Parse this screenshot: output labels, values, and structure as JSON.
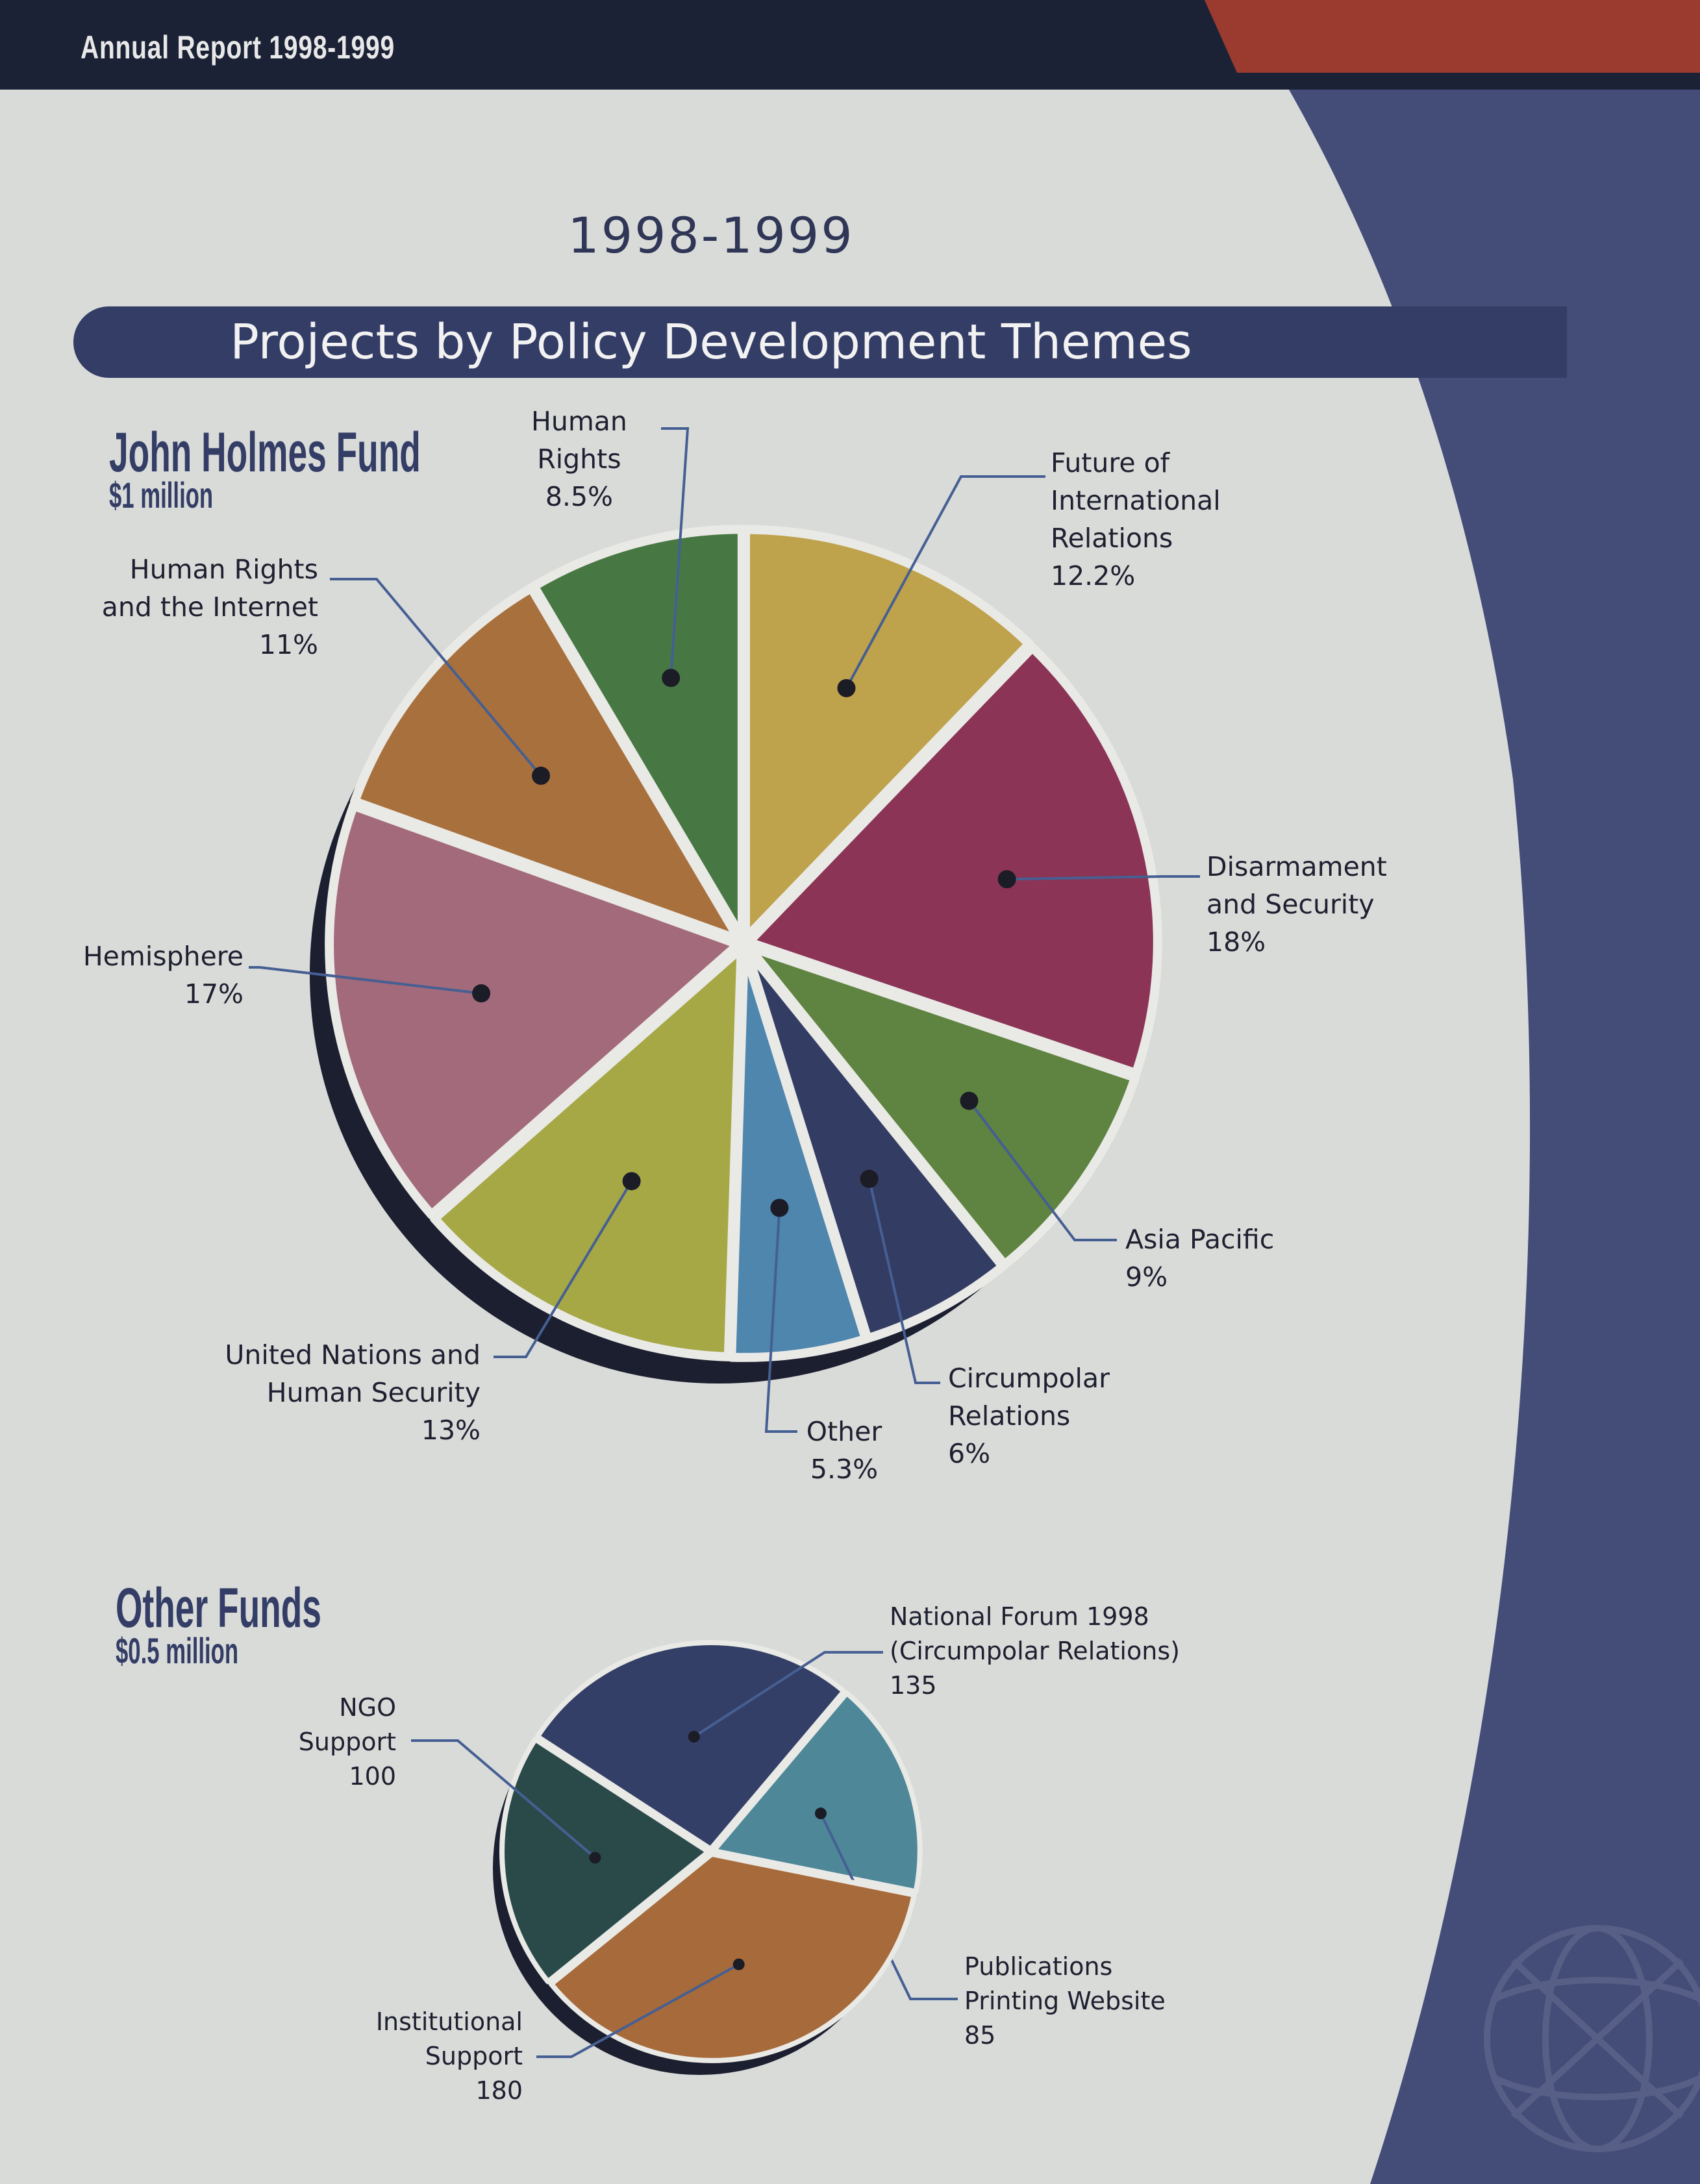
{
  "header": {
    "running_title": "Annual Report 1998-1999"
  },
  "page": {
    "year": "1998-1999",
    "title": "Projects by Policy Development Themes"
  },
  "colors": {
    "navy": "#343d66",
    "red": "#9b3b30",
    "background": "#d9dbd9"
  },
  "chart_data": [
    {
      "type": "pie",
      "title": "John Holmes Fund",
      "subtitle": "$1 million",
      "unit": "%",
      "slices": [
        {
          "name": "Future of International Relations",
          "value": 12.2,
          "label": "12.2%",
          "color": "#bfa24c"
        },
        {
          "name": "Disarmament and Security",
          "value": 18,
          "label": "18%",
          "color": "#8b3456"
        },
        {
          "name": "Asia Pacific",
          "value": 9,
          "label": "9%",
          "color": "#5f8340"
        },
        {
          "name": "Circumpolar Relations",
          "value": 6,
          "label": "6%",
          "color": "#333c62"
        },
        {
          "name": "Other",
          "value": 5.3,
          "label": "5.3%",
          "color": "#4e86ae"
        },
        {
          "name": "United Nations and Human Security",
          "value": 13,
          "label": "13%",
          "color": "#a6a846"
        },
        {
          "name": "Hemisphere",
          "value": 17,
          "label": "17%",
          "color": "#a26a7a"
        },
        {
          "name": "Human Rights and the Internet",
          "value": 11,
          "label": "11%",
          "color": "#a8703c"
        },
        {
          "name": "Human Rights",
          "value": 8.5,
          "label": "8.5%",
          "color": "#477843"
        }
      ]
    },
    {
      "type": "pie",
      "title": "Other Funds",
      "subtitle": "$0.5 million",
      "slices": [
        {
          "name": "National Forum 1998 (Circumpolar Relations)",
          "value": 135,
          "label": "135",
          "color": "#333f66"
        },
        {
          "name": "Publications Printing Website",
          "value": 85,
          "label": "85",
          "color": "#4e8798"
        },
        {
          "name": "Institutional Support",
          "value": 180,
          "label": "180",
          "color": "#a76a3a"
        },
        {
          "name": "NGO Support",
          "value": 100,
          "label": "100",
          "color": "#2a4a4a"
        }
      ]
    }
  ],
  "labels": {
    "human_rights": {
      "l1": "Human",
      "l2": "Rights",
      "l3": "8.5%"
    },
    "future": {
      "l1": "Future of",
      "l2": "International",
      "l3": "Relations",
      "l4": "12.2%"
    },
    "hr_internet": {
      "l1": "Human Rights",
      "l2": "and the Internet",
      "l3": "11%"
    },
    "disarmament": {
      "l1": "Disarmament",
      "l2": "and Security",
      "l3": "18%"
    },
    "hemisphere": {
      "l1": "Hemisphere",
      "l2": "17%"
    },
    "asia": {
      "l1": "Asia Pacific",
      "l2": "9%"
    },
    "un": {
      "l1": "United Nations and",
      "l2": "Human Security",
      "l3": "13%"
    },
    "other": {
      "l1": "Other",
      "l2": "5.3%"
    },
    "circumpolar": {
      "l1": "Circumpolar",
      "l2": "Relations",
      "l3": "6%"
    },
    "national_forum": {
      "l1": "National Forum 1998",
      "l2": "(Circumpolar Relations)",
      "l3": "135"
    },
    "ngo": {
      "l1": "NGO",
      "l2": "Support",
      "l3": "100"
    },
    "publications": {
      "l1": "Publications",
      "l2": "Printing Website",
      "l3": "85"
    },
    "institutional": {
      "l1": "Institutional",
      "l2": "Support",
      "l3": "180"
    }
  }
}
